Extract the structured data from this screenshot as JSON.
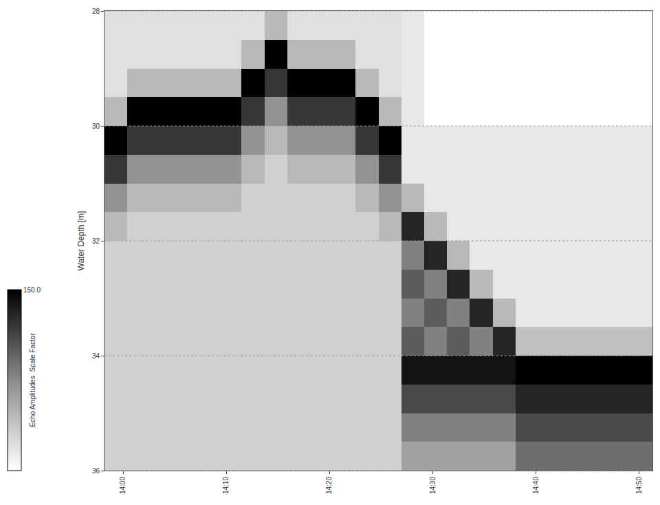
{
  "chart_data": {
    "type": "heatmap",
    "y_label": "Water Depth [m]",
    "colorbar_title": "Echo Amplitudes  Scale Factor",
    "colorbar_range": [
      0,
      150
    ],
    "colorbar_ticks": [
      {
        "value": 150,
        "label": "150.0"
      }
    ],
    "x": [
      839.31,
      841.52,
      843.73,
      845.94,
      848.16,
      850.37,
      852.58,
      854.79,
      857.01,
      859.22,
      861.43,
      863.64,
      865.86,
      868.07,
      870.28,
      872.49,
      874.71,
      876.92,
      879.13,
      881.34,
      883.56,
      885.77,
      887.98,
      890.19
    ],
    "y": [
      28.25,
      28.75,
      29.25,
      29.75,
      30.25,
      30.75,
      31.25,
      31.75,
      32.25,
      32.75,
      33.25,
      33.75,
      34.25,
      34.75,
      35.25,
      35.75
    ],
    "values": [
      [
        20,
        20,
        20,
        20,
        20,
        20,
        20,
        45,
        20,
        20,
        20,
        20,
        20,
        15,
        0,
        0,
        0,
        0,
        0,
        0,
        0,
        0,
        0,
        0
      ],
      [
        20,
        20,
        20,
        20,
        20,
        20,
        45,
        150,
        45,
        45,
        45,
        20,
        20,
        15,
        0,
        0,
        0,
        0,
        0,
        0,
        0,
        0,
        0,
        0
      ],
      [
        20,
        45,
        45,
        45,
        45,
        45,
        150,
        120,
        150,
        150,
        150,
        45,
        20,
        15,
        0,
        0,
        0,
        0,
        0,
        0,
        0,
        0,
        0,
        0
      ],
      [
        45,
        150,
        150,
        150,
        150,
        150,
        120,
        70,
        120,
        120,
        120,
        150,
        45,
        15,
        0,
        0,
        0,
        0,
        0,
        0,
        0,
        0,
        0,
        0
      ],
      [
        150,
        120,
        120,
        120,
        120,
        120,
        70,
        45,
        70,
        70,
        70,
        120,
        150,
        15,
        15,
        15,
        15,
        15,
        15,
        15,
        15,
        15,
        15,
        15
      ],
      [
        120,
        70,
        70,
        70,
        70,
        70,
        45,
        30,
        45,
        45,
        45,
        70,
        120,
        15,
        15,
        15,
        15,
        15,
        15,
        15,
        15,
        15,
        15,
        15
      ],
      [
        70,
        45,
        45,
        45,
        45,
        45,
        30,
        30,
        30,
        30,
        30,
        45,
        70,
        45,
        15,
        15,
        15,
        15,
        15,
        15,
        15,
        15,
        15,
        15
      ],
      [
        45,
        30,
        30,
        30,
        30,
        30,
        30,
        30,
        30,
        30,
        30,
        30,
        45,
        130,
        45,
        15,
        15,
        15,
        15,
        15,
        15,
        15,
        15,
        15
      ],
      [
        30,
        30,
        30,
        30,
        30,
        30,
        30,
        30,
        30,
        30,
        30,
        30,
        30,
        80,
        130,
        45,
        15,
        15,
        15,
        15,
        15,
        15,
        15,
        15
      ],
      [
        30,
        30,
        30,
        30,
        30,
        30,
        30,
        30,
        30,
        30,
        30,
        30,
        30,
        100,
        80,
        130,
        45,
        15,
        15,
        15,
        15,
        15,
        15,
        15
      ],
      [
        30,
        30,
        30,
        30,
        30,
        30,
        30,
        30,
        30,
        30,
        30,
        30,
        30,
        80,
        100,
        80,
        130,
        45,
        15,
        15,
        15,
        15,
        15,
        15
      ],
      [
        30,
        30,
        30,
        30,
        30,
        30,
        30,
        30,
        30,
        30,
        30,
        30,
        30,
        100,
        80,
        100,
        80,
        130,
        40,
        40,
        40,
        40,
        40,
        40
      ],
      [
        30,
        30,
        30,
        30,
        30,
        30,
        30,
        30,
        30,
        30,
        30,
        30,
        30,
        140,
        140,
        140,
        140,
        140,
        150,
        150,
        150,
        150,
        150,
        150
      ],
      [
        30,
        30,
        30,
        30,
        30,
        30,
        30,
        30,
        30,
        30,
        30,
        30,
        30,
        110,
        110,
        110,
        110,
        110,
        130,
        130,
        130,
        130,
        130,
        130
      ],
      [
        30,
        30,
        30,
        30,
        30,
        30,
        30,
        30,
        30,
        30,
        30,
        30,
        30,
        80,
        80,
        80,
        80,
        80,
        110,
        110,
        110,
        110,
        110,
        110
      ],
      [
        30,
        30,
        30,
        30,
        30,
        30,
        30,
        30,
        30,
        30,
        30,
        30,
        30,
        60,
        60,
        60,
        60,
        60,
        90,
        90,
        90,
        90,
        90,
        90
      ]
    ],
    "xlim": [
      838.2,
      891.3
    ],
    "xticks": [
      {
        "value": 840,
        "label": "14:00"
      },
      {
        "value": 850,
        "label": "14:10"
      },
      {
        "value": 860,
        "label": "14:20"
      },
      {
        "value": 870,
        "label": "14:30"
      },
      {
        "value": 880,
        "label": "14:40"
      },
      {
        "value": 890,
        "label": "14:50"
      }
    ],
    "ylim": [
      28,
      36
    ],
    "yticks": [
      28,
      30,
      32,
      34,
      36
    ],
    "grid": true
  }
}
